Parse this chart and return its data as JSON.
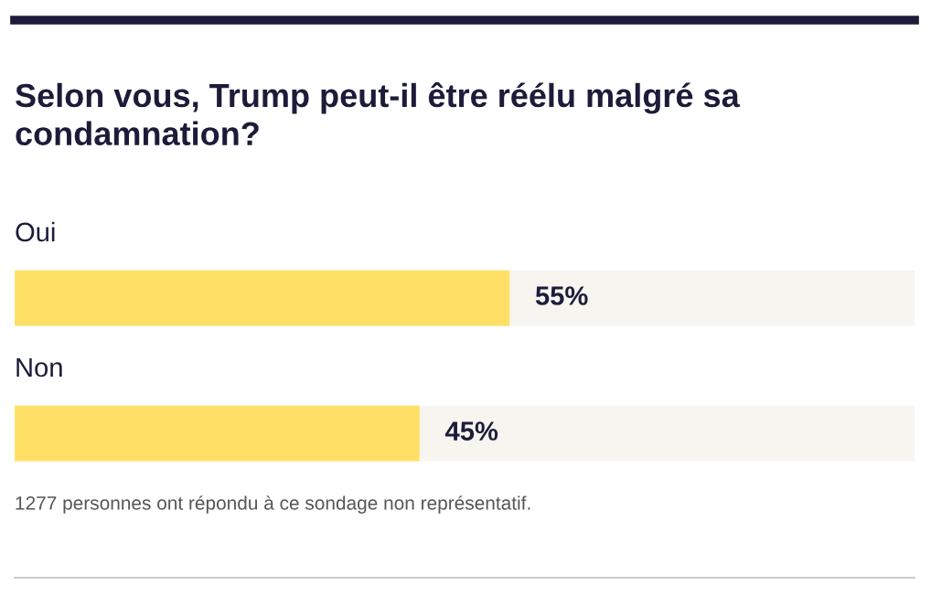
{
  "chart_data": {
    "type": "bar",
    "orientation": "horizontal",
    "title": "Selon vous, Trump peut-il être réélu malgré sa condamnation?",
    "categories": [
      "Oui",
      "Non"
    ],
    "values": [
      55,
      45
    ],
    "color": "#ffe066",
    "xlim": [
      0,
      100
    ],
    "data_labels": true,
    "value_labels": [
      "55%",
      "45%"
    ],
    "annotations": [
      "1277 personnes ont répondu à ce sondage non représentatif."
    ]
  }
}
